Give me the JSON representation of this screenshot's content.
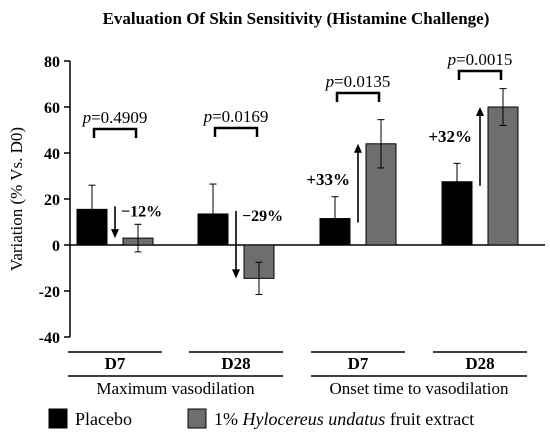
{
  "chart_data": {
    "type": "bar",
    "title": "Evaluation Of Skin Sensitivity (Histamine Challenge)",
    "ylabel": "Variation (% Vs. D0)",
    "xlabel": "",
    "ylim": [
      -40,
      80
    ],
    "yticks": [
      -40,
      -20,
      0,
      20,
      40,
      60,
      80
    ],
    "grid": false,
    "legend_position": "bottom",
    "groups": [
      {
        "label": "Maximum vasodilation",
        "categories": [
          0,
          1
        ]
      },
      {
        "label": "Onset time to vasodilation",
        "categories": [
          2,
          3
        ]
      }
    ],
    "categories": [
      "D7",
      "D28",
      "D7",
      "D28"
    ],
    "series": [
      {
        "name": "Placebo",
        "color": "#000000",
        "values": [
          15.5,
          13.5,
          11.5,
          27.5
        ],
        "error_up": [
          10.5,
          13,
          9.5,
          8
        ],
        "error_down": [
          10.5,
          13,
          9.5,
          8
        ]
      },
      {
        "name": "1% Hylocereus undatus fruit extract",
        "name_prefix": "1% ",
        "name_italic": "Hylocereus undatus",
        "name_suffix": " fruit extract",
        "color": "#6e6e6e",
        "values": [
          3,
          -14.5,
          44,
          60
        ],
        "error_up": [
          6,
          7,
          10.5,
          8
        ],
        "error_down": [
          6,
          7,
          10.5,
          8
        ]
      }
    ],
    "p_values": [
      "p=0.4909",
      "p=0.0169",
      "p=0.0135",
      "p=0.0015"
    ],
    "changes": [
      "−12%",
      "−29%",
      "+33%",
      "+32%"
    ]
  }
}
